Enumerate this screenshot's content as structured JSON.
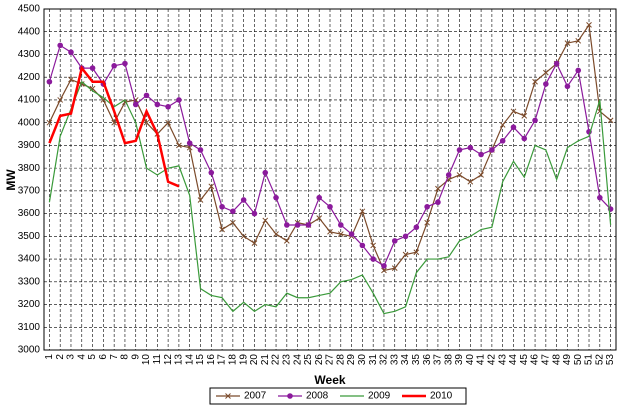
{
  "chart_data": {
    "type": "line",
    "xlabel": "Week",
    "ylabel": "MW",
    "categories": [
      "1",
      "2",
      "3",
      "4",
      "5",
      "6",
      "7",
      "8",
      "9",
      "10",
      "11",
      "12",
      "13",
      "14",
      "15",
      "16",
      "17",
      "18",
      "19",
      "20",
      "21",
      "22",
      "23",
      "24",
      "25",
      "26",
      "27",
      "28",
      "29",
      "30",
      "31",
      "32",
      "33",
      "34",
      "35",
      "36",
      "37",
      "38",
      "39",
      "40",
      "41",
      "42",
      "43",
      "44",
      "45",
      "46",
      "47",
      "48",
      "49",
      "50",
      "51",
      "52",
      "53"
    ],
    "ylim": [
      3000,
      4500
    ],
    "yticks": [
      3000,
      3100,
      3200,
      3300,
      3400,
      3500,
      3600,
      3700,
      3800,
      3900,
      4000,
      4100,
      4200,
      4300,
      4400,
      4500
    ],
    "grid": true,
    "legend": "bottom",
    "series": [
      {
        "name": "2007",
        "color": "#7b4a2a",
        "marker": "x",
        "values": [
          4000,
          4100,
          4190,
          4170,
          4150,
          4100,
          4000,
          4090,
          4100,
          4000,
          3950,
          4000,
          3900,
          3890,
          3660,
          3720,
          3530,
          3560,
          3500,
          3470,
          3570,
          3510,
          3480,
          3560,
          3550,
          3580,
          3520,
          3510,
          3500,
          3610,
          3460,
          3350,
          3360,
          3420,
          3430,
          3560,
          3710,
          3750,
          3770,
          3740,
          3770,
          3880,
          3990,
          4050,
          4030,
          4180,
          4220,
          4260,
          4350,
          4360,
          4430,
          4050,
          4010
        ]
      },
      {
        "name": "2008",
        "color": "#8b1a9c",
        "marker": "circle",
        "values": [
          4180,
          4340,
          4310,
          4240,
          4240,
          4170,
          4250,
          4260,
          4080,
          4120,
          4080,
          4070,
          4100,
          3910,
          3880,
          3780,
          3630,
          3610,
          3660,
          3600,
          3780,
          3670,
          3550,
          3550,
          3550,
          3670,
          3630,
          3550,
          3510,
          3460,
          3400,
          3370,
          3480,
          3500,
          3540,
          3630,
          3650,
          3770,
          3880,
          3890,
          3860,
          3880,
          3920,
          3980,
          3930,
          4010,
          4170,
          4260,
          4160,
          4230,
          3960,
          3670,
          3620
        ]
      },
      {
        "name": "2009",
        "color": "#3a9a3a",
        "values": [
          3650,
          3940,
          4060,
          4180,
          4140,
          4110,
          4070,
          4100,
          4000,
          3800,
          3770,
          3800,
          3810,
          3680,
          3270,
          3240,
          3230,
          3170,
          3210,
          3170,
          3200,
          3190,
          3250,
          3230,
          3230,
          3240,
          3250,
          3300,
          3310,
          3330,
          3250,
          3160,
          3170,
          3190,
          3340,
          3400,
          3400,
          3410,
          3480,
          3500,
          3530,
          3540,
          3740,
          3830,
          3760,
          3900,
          3880,
          3750,
          3890,
          3920,
          3940,
          4100,
          3550
        ]
      },
      {
        "name": "2010",
        "color": "#ff0000",
        "width": 2.5,
        "values": [
          3910,
          4030,
          4040,
          4240,
          4180,
          4180,
          4050,
          3910,
          3920,
          4050,
          3950,
          3740,
          3720,
          null,
          null,
          null,
          null,
          null,
          null,
          null,
          null,
          null,
          null,
          null,
          null,
          null,
          null,
          null,
          null,
          null,
          null,
          null,
          null,
          null,
          null,
          null,
          null,
          null,
          null,
          null,
          null,
          null,
          null,
          null,
          null,
          null,
          null,
          null,
          null,
          null,
          null,
          null,
          null
        ]
      }
    ]
  }
}
